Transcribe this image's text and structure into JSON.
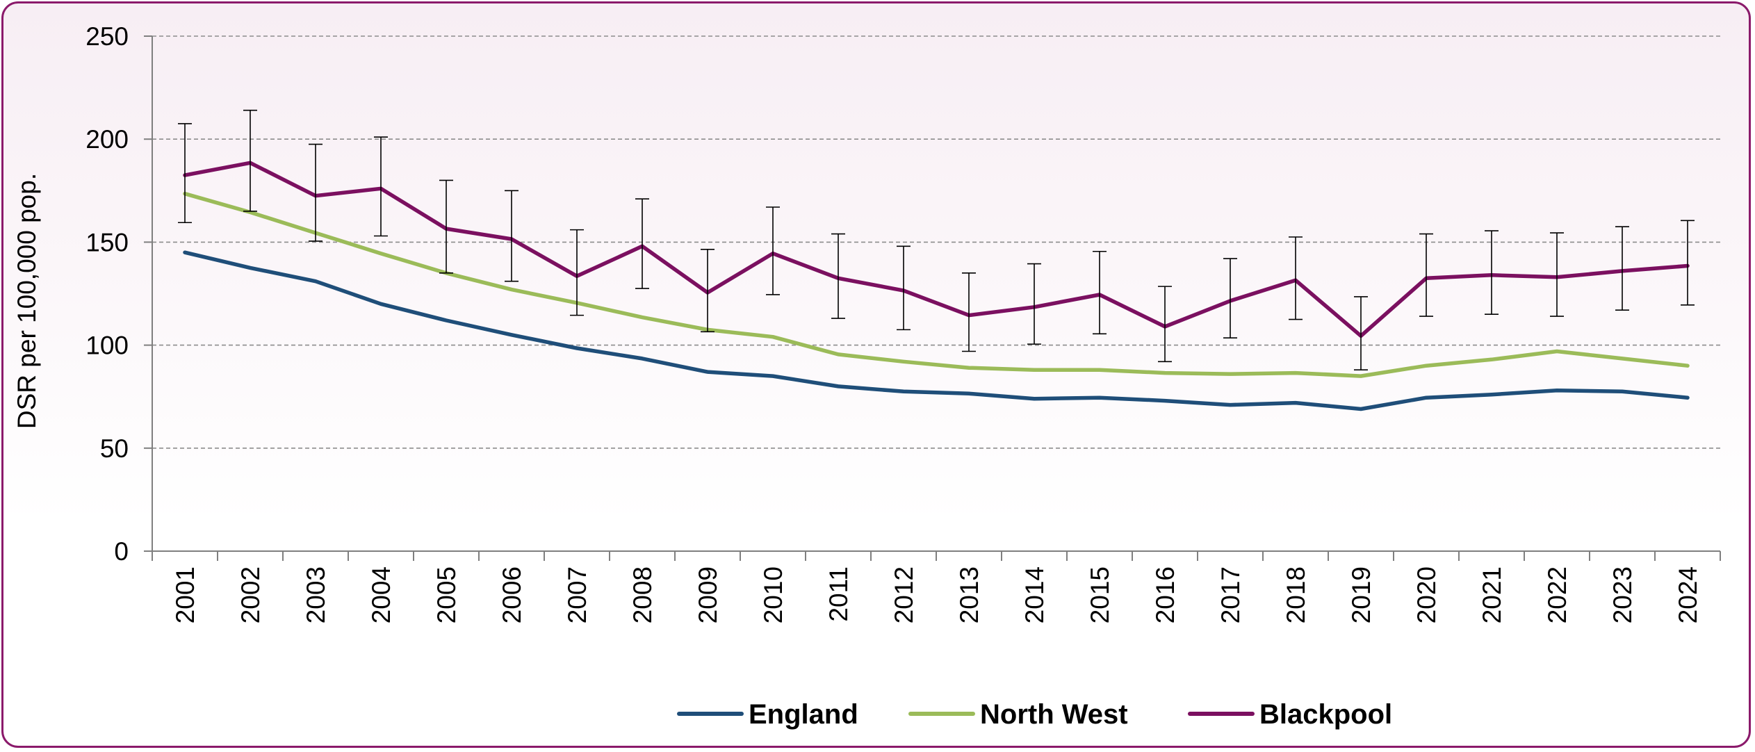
{
  "chart_data": {
    "type": "line",
    "title": "",
    "xlabel": "",
    "ylabel": "DSR per 100,000 pop.",
    "ylim": [
      0,
      250
    ],
    "yticks": [
      0,
      50,
      100,
      150,
      200,
      250
    ],
    "grid": true,
    "legend_position": "bottom",
    "categories": [
      "2001",
      "2002",
      "2003",
      "2004",
      "2005",
      "2006",
      "2007",
      "2008",
      "2009",
      "2010",
      "2011",
      "2012",
      "2013",
      "2014",
      "2015",
      "2016",
      "2017",
      "2018",
      "2019",
      "2020",
      "2021",
      "2022",
      "2023",
      "2024"
    ],
    "series": [
      {
        "name": "England",
        "color": "#1f4e79",
        "values": [
          145,
          137.5,
          131,
          120,
          112,
          105,
          98.5,
          93.5,
          87,
          85,
          80,
          77.5,
          76.5,
          74,
          74.5,
          73,
          71,
          72,
          69,
          74.5,
          76,
          78,
          77.5,
          74.5
        ]
      },
      {
        "name": "North West",
        "color": "#9bbb59",
        "values": [
          173.5,
          164.5,
          154.5,
          144.5,
          135,
          127,
          120.5,
          113.5,
          107.5,
          104,
          95.5,
          92,
          89,
          88,
          88,
          86.5,
          86,
          86.5,
          85,
          90,
          93,
          97,
          93.5,
          90
        ]
      },
      {
        "name": "Blackpool",
        "color": "#7b1060",
        "values": [
          182.5,
          188.5,
          172.5,
          176,
          156.5,
          151.5,
          133.5,
          148,
          125.5,
          144.5,
          132.5,
          126.5,
          114.5,
          118.5,
          124.5,
          109,
          121.5,
          131.5,
          104.5,
          132.5,
          134,
          133,
          136,
          138.5
        ],
        "error_low": [
          159.5,
          165,
          150.5,
          153,
          135,
          131,
          114.5,
          127.5,
          106.5,
          124.5,
          113,
          107.5,
          97,
          100.5,
          105.5,
          92,
          103.5,
          112.5,
          88,
          114,
          115,
          114,
          117,
          119.5
        ],
        "error_high": [
          207.5,
          214,
          197.5,
          201,
          180,
          175,
          156,
          171,
          146.5,
          167,
          154,
          148,
          135,
          139.5,
          145.5,
          128.5,
          142,
          152.5,
          123.5,
          154,
          155.5,
          154.5,
          157.5,
          160.5
        ]
      }
    ]
  }
}
